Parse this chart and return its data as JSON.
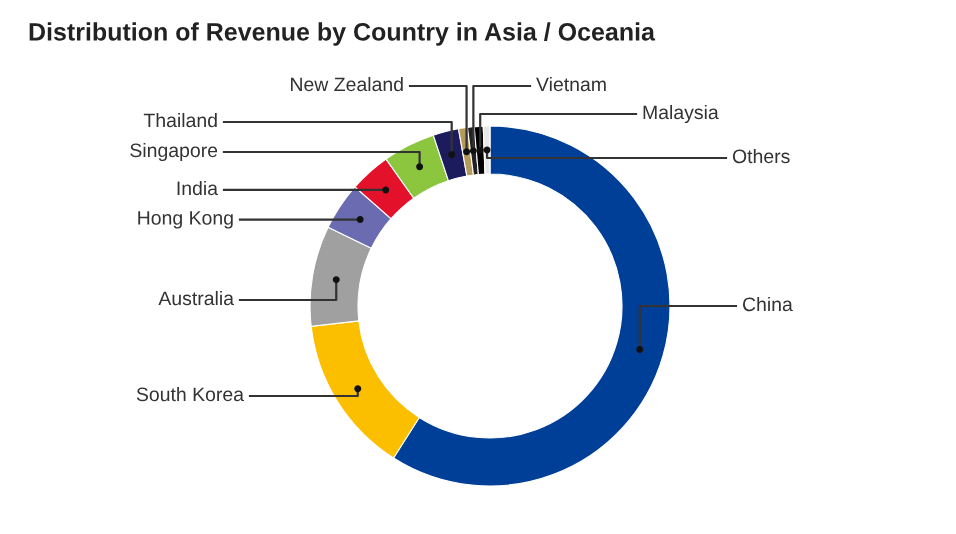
{
  "chart_data": {
    "type": "donut",
    "title": "Distribution of Revenue by Country in Asia / Oceania",
    "categories": [
      "China",
      "South Korea",
      "Australia",
      "Hong Kong",
      "India",
      "Singapore",
      "Thailand",
      "New Zealand",
      "Vietnam",
      "Malaysia",
      "Others"
    ],
    "values": [
      59,
      14.2,
      9,
      4.3,
      3.7,
      4.7,
      2.3,
      0.8,
      0.6,
      0.8,
      0.6
    ],
    "colors": [
      "#003f98",
      "#fbbf00",
      "#a0a0a0",
      "#6a6bb0",
      "#e4112a",
      "#8cc63f",
      "#1b1b5e",
      "#b59a5a",
      "#222222",
      "#000000",
      "#e8e8e8"
    ],
    "legend": false
  }
}
